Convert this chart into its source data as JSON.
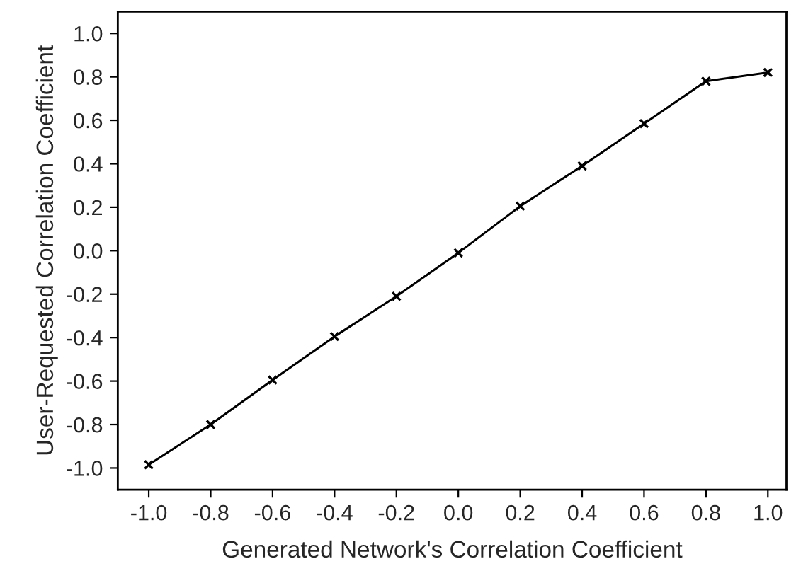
{
  "chart_data": {
    "type": "line",
    "xlabel": "Generated Network's Correlation Coefficient",
    "ylabel": "User-Requested Correlation Coefficient",
    "x": [
      -1.0,
      -0.8,
      -0.6,
      -0.4,
      -0.2,
      0.0,
      0.2,
      0.4,
      0.6,
      0.8,
      1.0
    ],
    "series": [
      {
        "color": "#000000",
        "values": [
          -0.985,
          -0.8,
          -0.595,
          -0.395,
          -0.21,
          -0.01,
          0.205,
          0.39,
          0.585,
          0.78,
          0.82
        ]
      }
    ],
    "xlim": [
      -1.1,
      1.06
    ],
    "ylim": [
      -1.1,
      1.1
    ],
    "xticks": [
      {
        "value": -1.0,
        "label": "-1.0"
      },
      {
        "value": -0.8,
        "label": "-0.8"
      },
      {
        "value": -0.6,
        "label": "-0.6"
      },
      {
        "value": -0.4,
        "label": "-0.4"
      },
      {
        "value": -0.2,
        "label": "-0.2"
      },
      {
        "value": 0.0,
        "label": "0.0"
      },
      {
        "value": 0.2,
        "label": "0.2"
      },
      {
        "value": 0.4,
        "label": "0.4"
      },
      {
        "value": 0.6,
        "label": "0.6"
      },
      {
        "value": 0.8,
        "label": "0.8"
      },
      {
        "value": 1.0,
        "label": "1.0"
      }
    ],
    "yticks": [
      {
        "value": -1.0,
        "label": "-1.0"
      },
      {
        "value": -0.8,
        "label": "-0.8"
      },
      {
        "value": -0.6,
        "label": "-0.6"
      },
      {
        "value": -0.4,
        "label": "-0.4"
      },
      {
        "value": -0.2,
        "label": "-0.2"
      },
      {
        "value": 0.0,
        "label": "0.0"
      },
      {
        "value": 0.2,
        "label": "0.2"
      },
      {
        "value": 0.4,
        "label": "0.4"
      },
      {
        "value": 0.6,
        "label": "0.6"
      },
      {
        "value": 0.8,
        "label": "0.8"
      },
      {
        "value": 1.0,
        "label": "1.0"
      }
    ],
    "marker": "cross",
    "line_style": "solid",
    "grid": false,
    "legend": false
  }
}
